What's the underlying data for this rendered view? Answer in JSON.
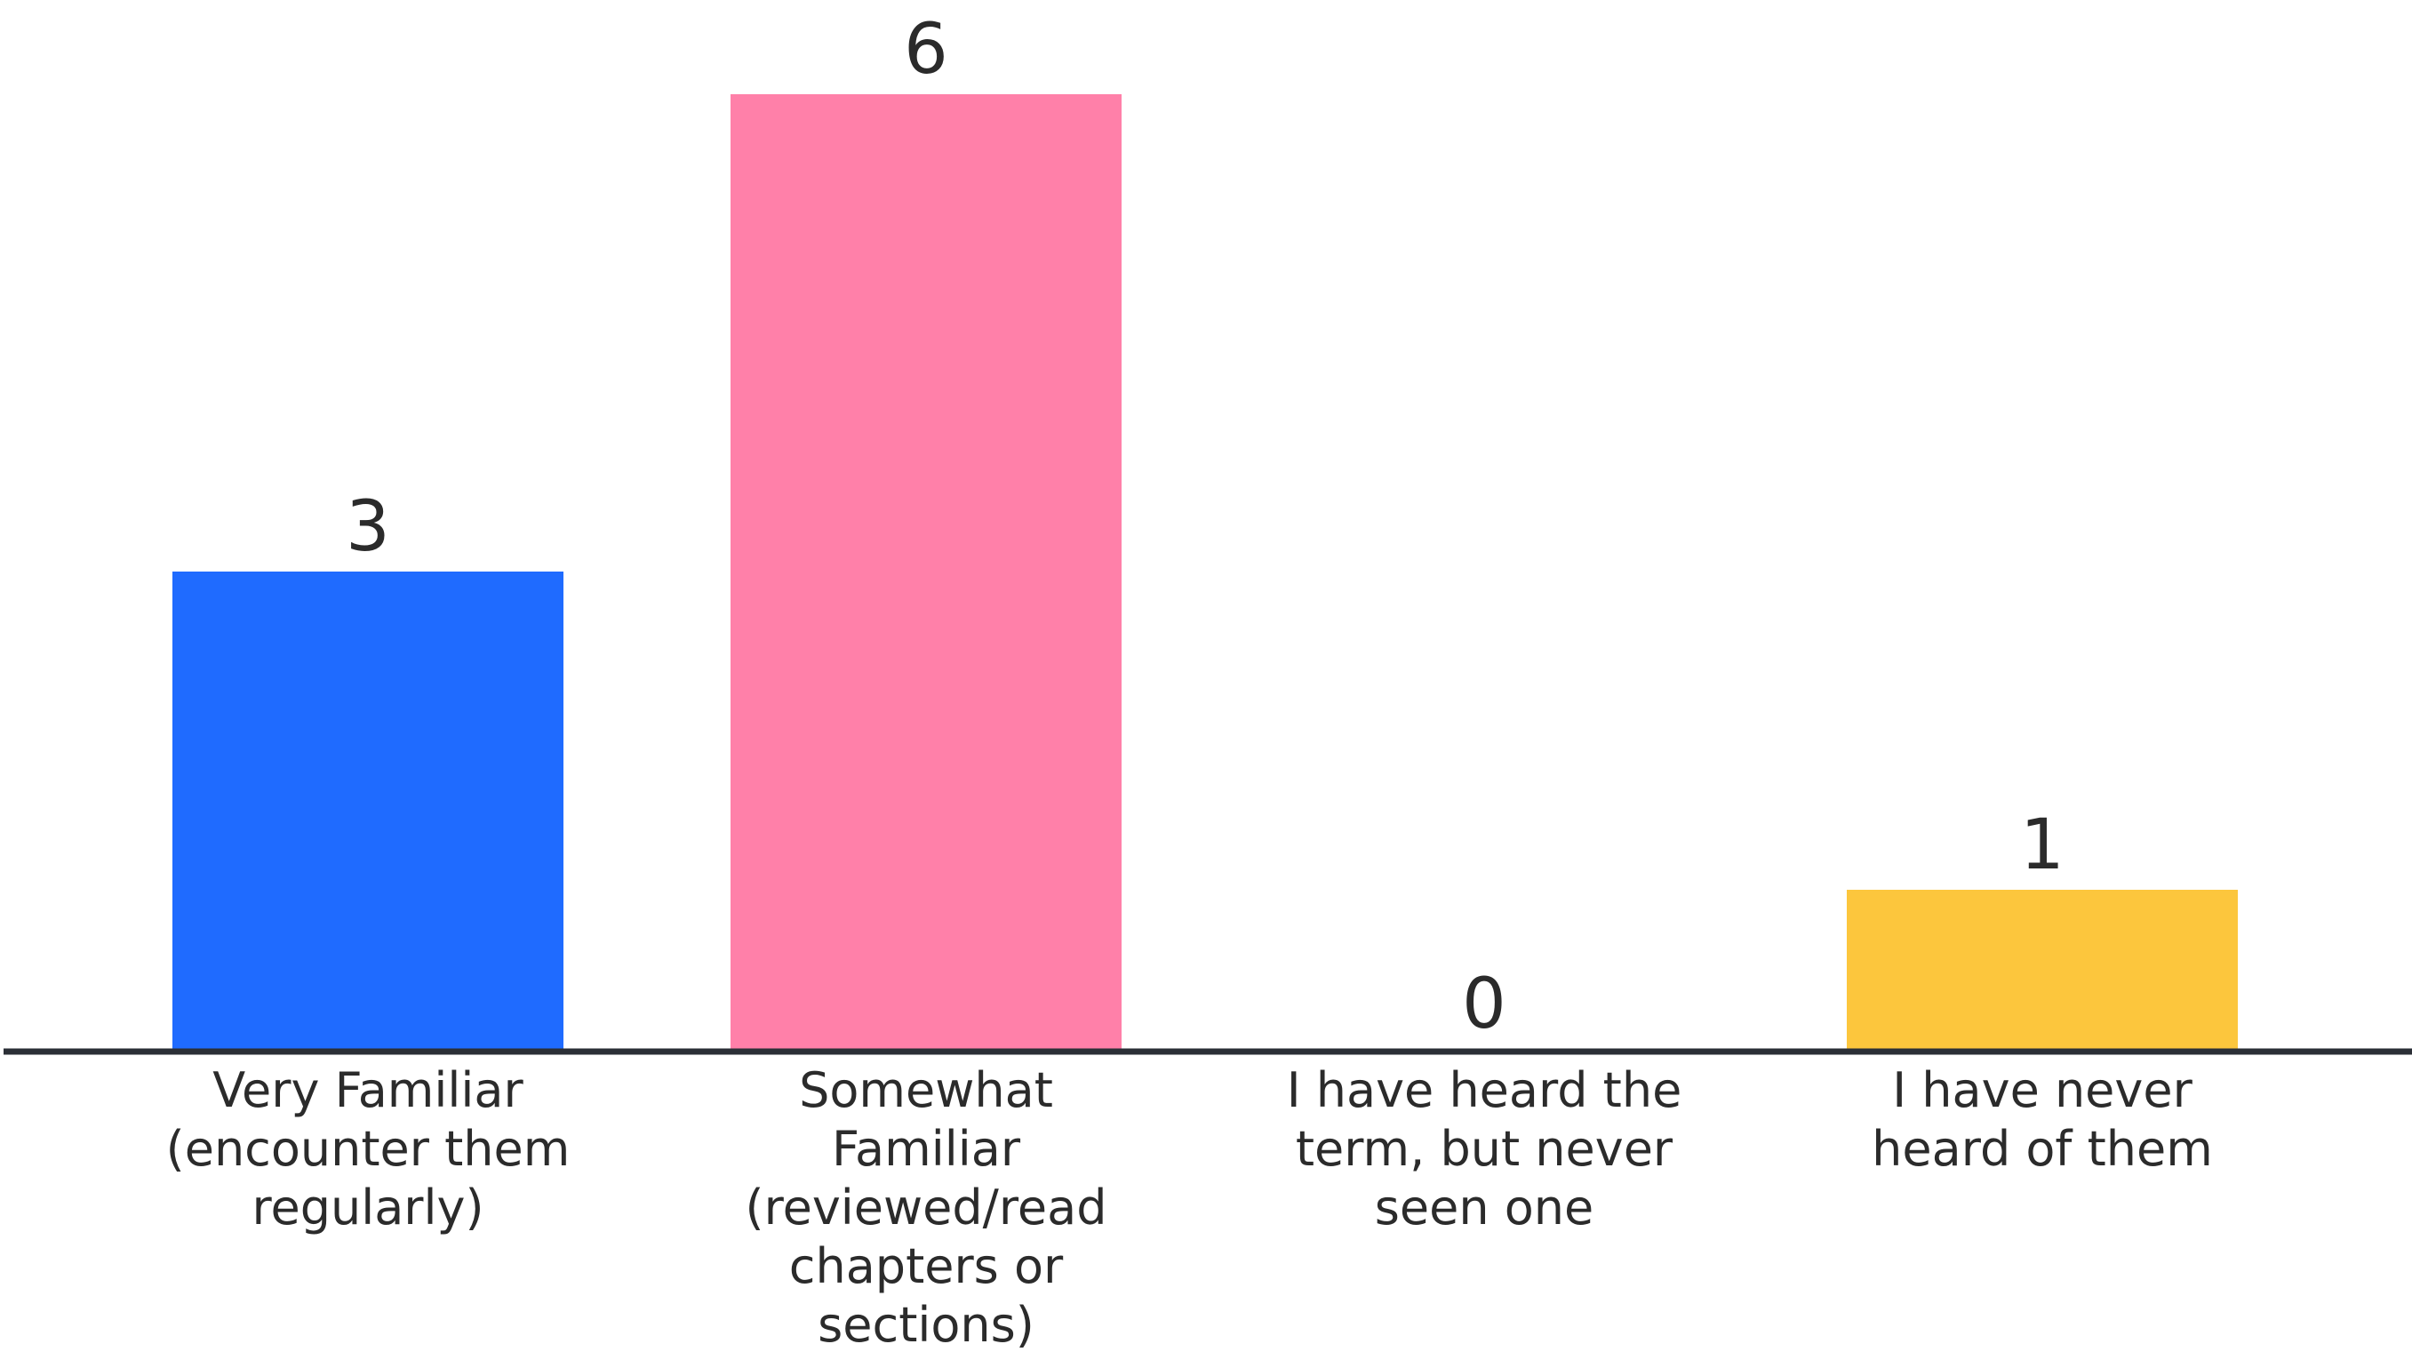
{
  "chart_data": {
    "type": "bar",
    "categories": [
      [
        "Very Familiar",
        "(encounter them",
        "regularly)"
      ],
      [
        "Somewhat",
        "Familiar",
        "(reviewed/read",
        "chapters or",
        "sections)"
      ],
      [
        "I have heard the",
        "term, but never",
        "seen one"
      ],
      [
        "I have never",
        "heard of them"
      ]
    ],
    "values": [
      3,
      6,
      0,
      1
    ],
    "colors": [
      "#1f6bff",
      "#ff80a9",
      "#7fd6d6",
      "#fcc63d"
    ],
    "axis_color": "#2b2f36",
    "title": "",
    "xlabel": "",
    "ylabel": "",
    "ylim": [
      0,
      6
    ],
    "grid": false,
    "legend": "none"
  }
}
